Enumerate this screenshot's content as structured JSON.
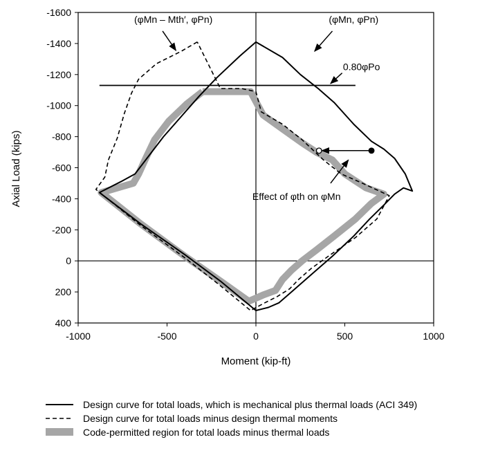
{
  "chart_data": {
    "type": "line",
    "title": "",
    "xlabel": "Moment (kip-ft)",
    "ylabel": "Axial Load (kips)",
    "xlim": [
      -1000,
      1000
    ],
    "ylim": [
      400,
      -1600
    ],
    "x_ticks": [
      -1000,
      -500,
      0,
      500,
      1000
    ],
    "x_tick_labels": [
      "-1000",
      "-500",
      "0",
      "500",
      "1000"
    ],
    "y_ticks": [
      -1600,
      -1400,
      -1200,
      -1000,
      -800,
      -600,
      -400,
      -200,
      0,
      200,
      400
    ],
    "y_tick_labels": [
      "-1600",
      "-1400",
      "-1200",
      "-1000",
      "-800",
      "-600",
      "-400",
      "-200",
      "0",
      "200",
      "400"
    ],
    "grid": false,
    "legend_position": "bottom",
    "series": [
      {
        "name": "Design curve for total loads, which is mechanical plus thermal loads (ACI 349)",
        "style": "solid",
        "color": "#000000",
        "x": [
          0,
          -90,
          -220,
          -320,
          -420,
          -520,
          -600,
          -680,
          -760,
          -880,
          -650,
          -400,
          -200,
          0,
          70,
          130,
          200,
          260,
          330,
          430,
          550,
          640,
          720,
          780,
          830,
          880,
          840,
          780,
          720,
          650,
          550,
          440,
          350,
          250,
          150,
          0
        ],
        "y": [
          -1410,
          -1320,
          -1180,
          -1060,
          -930,
          -800,
          -680,
          -560,
          -510,
          -440,
          -240,
          -40,
          130,
          320,
          300,
          270,
          200,
          140,
          70,
          -30,
          -160,
          -270,
          -360,
          -430,
          -470,
          -450,
          -560,
          -660,
          -720,
          -770,
          -880,
          -1020,
          -1110,
          -1200,
          -1310,
          -1410
        ]
      },
      {
        "name": "Design curve for total loads minus design thermal moments",
        "style": "dashed",
        "color": "#000000",
        "x": [
          -330,
          -420,
          -560,
          -660,
          -700,
          -740,
          -780,
          -830,
          -850,
          -900,
          -650,
          -400,
          -200,
          -30,
          50,
          120,
          190,
          240,
          310,
          420,
          560,
          680,
          750,
          600,
          480,
          380,
          260,
          150,
          30,
          0,
          -80,
          -200,
          -330
        ],
        "y": [
          -1410,
          -1350,
          -1270,
          -1170,
          -1080,
          -950,
          -790,
          -650,
          -540,
          -460,
          -230,
          -20,
          160,
          320,
          270,
          230,
          180,
          120,
          50,
          -40,
          -150,
          -270,
          -420,
          -500,
          -560,
          -650,
          -780,
          -880,
          -960,
          -1090,
          -1110,
          -1110,
          -1410
        ]
      },
      {
        "name": "Code-permitted region for total loads minus thermal loads",
        "style": "band",
        "color": "#a6a6a6",
        "x": [
          -300,
          -390,
          -490,
          -570,
          -620,
          -660,
          -690,
          -870,
          -650,
          -400,
          -200,
          -40,
          40,
          110,
          150,
          200,
          260,
          340,
          440,
          560,
          650,
          720,
          620,
          500,
          430,
          340,
          260,
          150,
          40,
          -30,
          -300
        ],
        "y": [
          -1090,
          -1010,
          -900,
          -780,
          -660,
          -560,
          -500,
          -440,
          -240,
          -30,
          130,
          260,
          220,
          190,
          120,
          60,
          0,
          -70,
          -160,
          -270,
          -370,
          -430,
          -470,
          -560,
          -650,
          -700,
          -760,
          -850,
          -940,
          -1090,
          -1090
        ]
      },
      {
        "name": "0.80φPo",
        "style": "solid",
        "color": "#000000",
        "x": [
          -880,
          560
        ],
        "y": [
          -1130,
          -1130
        ]
      }
    ],
    "points": [
      {
        "x": 650,
        "y": -710,
        "filled": true
      },
      {
        "x": 355,
        "y": -710,
        "filled": false
      }
    ],
    "arrows": [
      {
        "from": [
          650,
          -710
        ],
        "to": [
          355,
          -710
        ]
      }
    ],
    "annotations": [
      {
        "text": "(φMn – Mth′, φPn)",
        "label_xy": [
          -685,
          -1555
        ],
        "arrow_from": [
          -525,
          -1480
        ],
        "arrow_to": [
          -450,
          -1355
        ]
      },
      {
        "text": "(φMn, φPn)",
        "label_xy": [
          410,
          -1555
        ],
        "arrow_from": [
          430,
          -1480
        ],
        "arrow_to": [
          330,
          -1350
        ]
      },
      {
        "text": "0.80φPo",
        "label_xy": [
          490,
          -1250
        ],
        "arrow_from": [
          485,
          -1210
        ],
        "arrow_to": [
          420,
          -1142
        ]
      },
      {
        "text": "Effect of φth on φMn",
        "label_xy": [
          -20,
          -415
        ],
        "arrow_from": [
          420,
          -500
        ],
        "arrow_to": [
          520,
          -650
        ]
      }
    ]
  }
}
